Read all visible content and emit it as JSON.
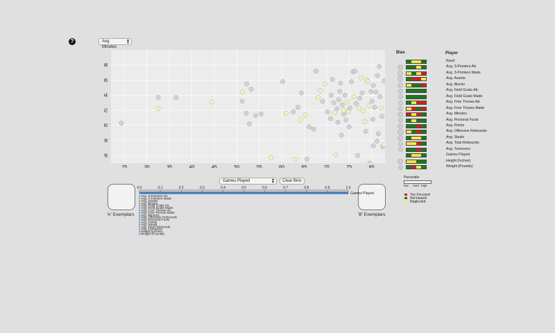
{
  "help": {
    "label": "?"
  },
  "x_axis_select": {
    "value": "Avg. Minutes"
  },
  "bin_select": {
    "value": "Games Played"
  },
  "clear_bins_button": {
    "label": "Clear Bins"
  },
  "exemplars": {
    "a_label": "'A' Exemplars",
    "b_label": "'B' Exemplars"
  },
  "bias_panel": {
    "title": "Bias",
    "player_title": "Player",
    "items": [
      {
        "label": "Rand",
        "circle": 0,
        "bar": [
          "#1a7a1a",
          "#f7e64a",
          "#f7e64a",
          "#1a7a1a"
        ]
      },
      {
        "label": "Avg. 3-Pointers Att.",
        "circle": 4,
        "bar": [
          "#1a7a1a",
          "#1a7a1a",
          "#f7e64a",
          "#1a7a1a"
        ]
      },
      {
        "label": "Avg. 3-Pointers Made",
        "circle": 4,
        "bar": [
          "#f7e64a",
          "#1a7a1a",
          "#f7e64a",
          "#d32020"
        ]
      },
      {
        "label": "Avg. Assists",
        "circle": 4,
        "bar": [
          "#1a7a1a",
          "#d32020",
          "#d32020",
          "#f7e64a"
        ]
      },
      {
        "label": "Avg. Blocks",
        "circle": 4,
        "bar": [
          "#f7e64a",
          "#1a7a1a",
          "#1a7a1a",
          "#d32020"
        ]
      },
      {
        "label": "Avg. Field Goals Att.",
        "circle": 3,
        "bar": [
          "#1a7a1a",
          "#1a7a1a",
          "#1a7a1a",
          "#1a7a1a"
        ]
      },
      {
        "label": "Avg. Field Goals Made",
        "circle": 3,
        "bar": [
          "#1a7a1a",
          "#1a7a1a",
          "#1a7a1a",
          "#1a7a1a"
        ]
      },
      {
        "label": "Avg. Free Throws Att.",
        "circle": 3,
        "bar": [
          "#1a7a1a",
          "#f7e64a",
          "#d32020",
          "#d32020"
        ]
      },
      {
        "label": "Avg. Free Throws Made",
        "circle": 3,
        "bar": [
          "#f7e64a",
          "#d32020",
          "#1a7a1a",
          "#d32020"
        ]
      },
      {
        "label": "Avg. Minutes",
        "circle": 4,
        "bar": [
          "#d32020",
          "#f7e64a",
          "#d32020",
          "#1a7a1a"
        ]
      },
      {
        "label": "Avg. Personal Fouls",
        "circle": 3,
        "bar": [
          "#1a7a1a",
          "#f7e64a",
          "#1a7a1a",
          "#1a7a1a"
        ]
      },
      {
        "label": "Avg. Points",
        "circle": 4,
        "bar": [
          "#1a7a1a",
          "#1a7a1a",
          "#d32020",
          "#1a7a1a"
        ]
      },
      {
        "label": "Avg. Offensive Rebounds",
        "circle": 5,
        "bar": [
          "#f7e64a",
          "#1a7a1a",
          "#d32020",
          "#1a7a1a"
        ]
      },
      {
        "label": "Avg. Steals",
        "circle": 4,
        "bar": [
          "#1a7a1a",
          "#f7e64a",
          "#f7e64a",
          "#1a7a1a"
        ]
      },
      {
        "label": "Avg. Total Rebounds",
        "circle": 3,
        "bar": [
          "#f7e64a",
          "#f7e64a",
          "#d32020",
          "#1a7a1a"
        ]
      },
      {
        "label": "Avg. Turnovers",
        "circle": 3,
        "bar": [
          "#1a7a1a",
          "#1a7a1a",
          "#d32020",
          "#1a7a1a"
        ]
      },
      {
        "label": "Games Played",
        "circle": 0,
        "bar": [
          "#1a7a1a",
          "#f7e64a",
          "#f7e64a",
          "#1a7a1a"
        ]
      },
      {
        "label": "Height (Inches)",
        "circle": 4,
        "bar": [
          "#f7e64a",
          "#f7e64a",
          "#1a7a1a",
          "#1a7a1a"
        ]
      },
      {
        "label": "Weight (Pounds)",
        "circle": 3,
        "bar": [
          "#1a7a1a",
          "#d32020",
          "#f7e64a",
          "#1a7a1a"
        ]
      }
    ]
  },
  "percentile": {
    "title": "Percentile",
    "low": "low",
    "med": "med",
    "high": "high"
  },
  "legend": [
    {
      "label": "Too Focused",
      "color": "#d32020"
    },
    {
      "label": "Not biased",
      "color": "#1a7a1a"
    },
    {
      "label": "Neglected",
      "color": "#f7e64a"
    }
  ],
  "bin_axis": {
    "ticks": [
      "0.0",
      "0.1",
      "0.2",
      "0.3",
      "0.4",
      "0.5",
      "0.6",
      "0.7",
      "0.8",
      "0.9",
      "1.0"
    ],
    "bar_label": "Games Played",
    "labels": [
      "Avg. 3-Pointers Att.",
      "Avg. 3-Pointers Made",
      "Avg. Assists",
      "Avg. Blocks",
      "Avg. Field Goals Att.",
      "Avg. Field Goals Made",
      "Avg. Free Throws Att.",
      "Avg. Free Throws Made",
      "Avg. Minutes",
      "Avg. Offensive Rebounds",
      "Avg. Personal Fouls",
      "Avg. Points",
      "Avg. Steals",
      "Avg. Total Rebounds",
      "Avg. Turnovers",
      "Height (Inches)",
      "Weight (Pounds)"
    ]
  },
  "chart_data": {
    "type": "scatter",
    "xlim": [
      22,
      83
    ],
    "ylim": [
      25,
      40
    ],
    "xticks": [
      25,
      30,
      35,
      40,
      45,
      50,
      55,
      60,
      65,
      70,
      75,
      80
    ],
    "yticks": [
      26,
      28,
      30,
      32,
      34,
      36,
      38
    ],
    "grid": true,
    "colors": {
      "gray": "#cfcfcf",
      "yellow": "#f4f2b8"
    },
    "points": [
      {
        "x": 24.3,
        "y": 30.3,
        "c": "gray"
      },
      {
        "x": 32.5,
        "y": 33.7,
        "c": "gray"
      },
      {
        "x": 32.5,
        "y": 32.2,
        "c": "yellow"
      },
      {
        "x": 36.5,
        "y": 33.7,
        "c": "gray"
      },
      {
        "x": 44.5,
        "y": 33.1,
        "c": "yellow"
      },
      {
        "x": 51.2,
        "y": 33.2,
        "c": "gray"
      },
      {
        "x": 51.2,
        "y": 34.4,
        "c": "yellow"
      },
      {
        "x": 52.2,
        "y": 35.5,
        "c": "gray"
      },
      {
        "x": 53.2,
        "y": 34.8,
        "c": "gray"
      },
      {
        "x": 52.1,
        "y": 31.6,
        "c": "gray"
      },
      {
        "x": 52.8,
        "y": 30.2,
        "c": "gray"
      },
      {
        "x": 54.2,
        "y": 31.3,
        "c": "gray"
      },
      {
        "x": 55.4,
        "y": 31.5,
        "c": "gray"
      },
      {
        "x": 57.6,
        "y": 25.7,
        "c": "yellow"
      },
      {
        "x": 60.2,
        "y": 35.8,
        "c": "gray"
      },
      {
        "x": 61.0,
        "y": 31.6,
        "c": "yellow"
      },
      {
        "x": 62.6,
        "y": 31.8,
        "c": "gray"
      },
      {
        "x": 63.1,
        "y": 25.5,
        "c": "yellow"
      },
      {
        "x": 63.6,
        "y": 32.4,
        "c": "gray"
      },
      {
        "x": 64.4,
        "y": 34.3,
        "c": "gray"
      },
      {
        "x": 64.2,
        "y": 30.7,
        "c": "yellow"
      },
      {
        "x": 65.2,
        "y": 31.4,
        "c": "yellow"
      },
      {
        "x": 65.6,
        "y": 25.5,
        "c": "gray"
      },
      {
        "x": 66.1,
        "y": 29.8,
        "c": "gray"
      },
      {
        "x": 67.1,
        "y": 29.5,
        "c": "gray"
      },
      {
        "x": 67.6,
        "y": 37.2,
        "c": "gray"
      },
      {
        "x": 68.1,
        "y": 33.7,
        "c": "yellow"
      },
      {
        "x": 68.6,
        "y": 34.6,
        "c": "yellow"
      },
      {
        "x": 69.1,
        "y": 33.2,
        "c": "gray"
      },
      {
        "x": 69.6,
        "y": 35.5,
        "c": "yellow"
      },
      {
        "x": 70.2,
        "y": 31.8,
        "c": "gray"
      },
      {
        "x": 71.0,
        "y": 34.0,
        "c": "gray"
      },
      {
        "x": 71.3,
        "y": 36.1,
        "c": "gray"
      },
      {
        "x": 71.6,
        "y": 33.0,
        "c": "gray"
      },
      {
        "x": 71.8,
        "y": 31.7,
        "c": "yellow"
      },
      {
        "x": 72.0,
        "y": 26.1,
        "c": "yellow"
      },
      {
        "x": 72.3,
        "y": 32.2,
        "c": "gray"
      },
      {
        "x": 72.7,
        "y": 33.4,
        "c": "gray"
      },
      {
        "x": 72.5,
        "y": 30.4,
        "c": "gray"
      },
      {
        "x": 72.9,
        "y": 34.5,
        "c": "gray"
      },
      {
        "x": 73.1,
        "y": 35.6,
        "c": "gray"
      },
      {
        "x": 73.3,
        "y": 28.7,
        "c": "gray"
      },
      {
        "x": 73.5,
        "y": 32.7,
        "c": "gray"
      },
      {
        "x": 73.8,
        "y": 31.5,
        "c": "gray"
      },
      {
        "x": 74.1,
        "y": 34.0,
        "c": "gray"
      },
      {
        "x": 74.3,
        "y": 30.7,
        "c": "gray"
      },
      {
        "x": 74.6,
        "y": 33.1,
        "c": "yellow"
      },
      {
        "x": 74.8,
        "y": 31.8,
        "c": "yellow"
      },
      {
        "x": 75.0,
        "y": 29.8,
        "c": "gray"
      },
      {
        "x": 75.2,
        "y": 32.3,
        "c": "gray"
      },
      {
        "x": 75.5,
        "y": 35.8,
        "c": "gray"
      },
      {
        "x": 75.8,
        "y": 37.1,
        "c": "gray"
      },
      {
        "x": 76.1,
        "y": 33.8,
        "c": "yellow"
      },
      {
        "x": 76.3,
        "y": 37.2,
        "c": "gray"
      },
      {
        "x": 76.6,
        "y": 32.9,
        "c": "gray"
      },
      {
        "x": 76.9,
        "y": 26.0,
        "c": "gray"
      },
      {
        "x": 77.2,
        "y": 32.3,
        "c": "yellow"
      },
      {
        "x": 77.4,
        "y": 33.6,
        "c": "gray"
      },
      {
        "x": 77.7,
        "y": 36.3,
        "c": "yellow"
      },
      {
        "x": 77.9,
        "y": 34.3,
        "c": "gray"
      },
      {
        "x": 78.2,
        "y": 31.9,
        "c": "yellow"
      },
      {
        "x": 78.5,
        "y": 30.5,
        "c": "yellow"
      },
      {
        "x": 78.7,
        "y": 29.2,
        "c": "gray"
      },
      {
        "x": 78.9,
        "y": 36.0,
        "c": "yellow"
      },
      {
        "x": 79.2,
        "y": 35.8,
        "c": "yellow"
      },
      {
        "x": 79.4,
        "y": 32.6,
        "c": "yellow"
      },
      {
        "x": 79.6,
        "y": 25.0,
        "c": "gray"
      },
      {
        "x": 79.9,
        "y": 34.5,
        "c": "gray"
      },
      {
        "x": 80.1,
        "y": 33.2,
        "c": "gray"
      },
      {
        "x": 80.4,
        "y": 35.3,
        "c": "gray"
      },
      {
        "x": 80.7,
        "y": 32.4,
        "c": "gray"
      },
      {
        "x": 81.0,
        "y": 34.4,
        "c": "gray"
      },
      {
        "x": 81.2,
        "y": 27.9,
        "c": "gray"
      },
      {
        "x": 81.5,
        "y": 28.9,
        "c": "gray"
      },
      {
        "x": 81.3,
        "y": 36.6,
        "c": "gray"
      },
      {
        "x": 81.7,
        "y": 37.8,
        "c": "gray"
      },
      {
        "x": 81.9,
        "y": 33.8,
        "c": "gray"
      },
      {
        "x": 82.1,
        "y": 32.3,
        "c": "yellow"
      },
      {
        "x": 82.3,
        "y": 31.2,
        "c": "gray"
      },
      {
        "x": 82.5,
        "y": 27.2,
        "c": "gray"
      },
      {
        "x": 82.7,
        "y": 27.4,
        "c": "yellow"
      },
      {
        "x": 82.8,
        "y": 35.9,
        "c": "gray"
      },
      {
        "x": 80.4,
        "y": 27.3,
        "c": "gray"
      },
      {
        "x": 73.8,
        "y": 32.0,
        "c": "yellow"
      },
      {
        "x": 80.3,
        "y": 30.8,
        "c": "gray"
      },
      {
        "x": 70.9,
        "y": 30.9,
        "c": "gray"
      }
    ]
  }
}
